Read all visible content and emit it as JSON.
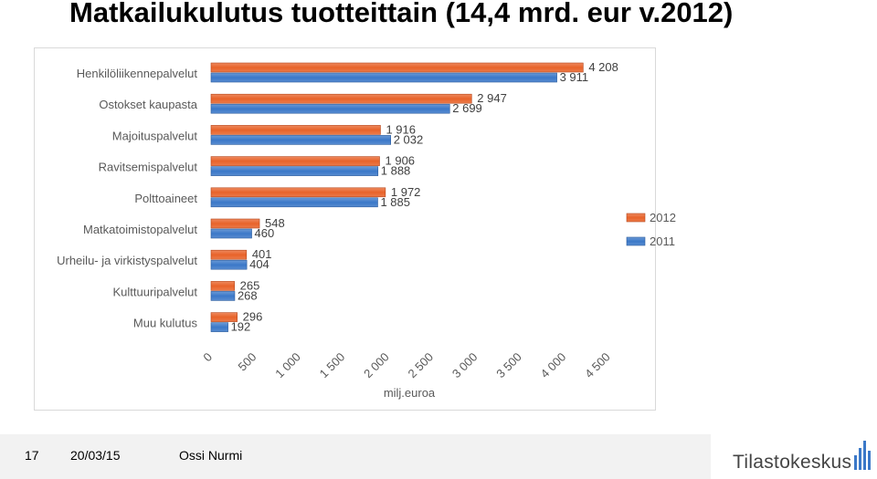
{
  "title": "Matkailukulutus tuotteittain (14,4 mrd. eur v.2012)",
  "chart_data": {
    "type": "bar",
    "orientation": "horizontal",
    "categories": [
      "Henkilöliikennepalvelut",
      "Ostokset kaupasta",
      "Majoituspalvelut",
      "Ravitsemispalvelut",
      "Polttoaineet",
      "Matkatoimistopalvelut",
      "Urheilu- ja virkistyspalvelut",
      "Kulttuuripalvelut",
      "Muu kulutus"
    ],
    "series": [
      {
        "name": "2012",
        "color": "#e8632a",
        "values": [
          4208,
          2947,
          1916,
          1906,
          1972,
          548,
          401,
          265,
          296
        ],
        "labels": [
          "4 208",
          "2 947",
          "1 916",
          "1 906",
          "1 972",
          "548",
          "401",
          "265",
          "296"
        ]
      },
      {
        "name": "2011",
        "color": "#3b78c8",
        "values": [
          3911,
          2699,
          2032,
          1888,
          1885,
          460,
          404,
          268,
          192
        ],
        "labels": [
          "3 911",
          "2 699",
          "2 032",
          "1 888",
          "1 885",
          "460",
          "404",
          "268",
          "192"
        ]
      }
    ],
    "x_ticks": [
      "0",
      "500",
      "1 000",
      "1 500",
      "2 000",
      "2 500",
      "3 000",
      "3 500",
      "4 000",
      "4 500"
    ],
    "xlabel": "milj.euroa",
    "xlim": [
      0,
      4500
    ],
    "grid": false,
    "legend": "right"
  },
  "footer": {
    "page": "17",
    "date": "20/03/15",
    "author": "Ossi Nurmi",
    "logo": "Tilastokeskus"
  }
}
